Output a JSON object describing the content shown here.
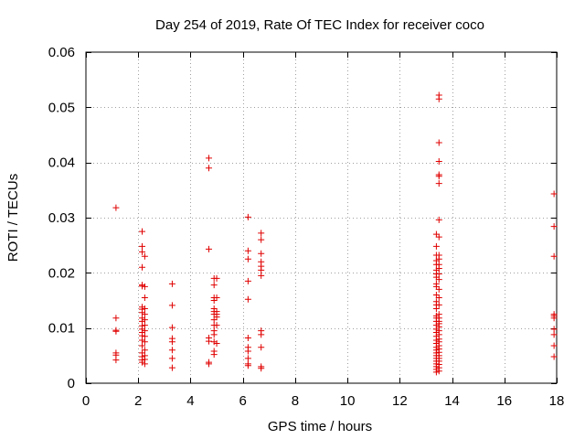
{
  "chart_data": {
    "type": "scatter",
    "title": "Day 254 of 2019, Rate Of TEC Index for receiver coco",
    "xlabel": "GPS time / hours",
    "ylabel": "ROTI / TECUs",
    "xlim": [
      0,
      18
    ],
    "ylim": [
      0,
      0.06
    ],
    "xticks": [
      0,
      2,
      4,
      6,
      8,
      10,
      12,
      14,
      16,
      18
    ],
    "xtick_labels": [
      "0",
      "2",
      "4",
      "6",
      "8",
      "10",
      "12",
      "14",
      "16",
      "18"
    ],
    "yticks": [
      0,
      0.01,
      0.02,
      0.03,
      0.04,
      0.05,
      0.06
    ],
    "ytick_labels": [
      "0",
      "0.01",
      "0.02",
      "0.03",
      "0.04",
      "0.05",
      "0.06"
    ],
    "grid": true,
    "marker": "+",
    "color": "#e00000",
    "series": [
      {
        "name": "ROTI",
        "points": [
          [
            1.15,
            0.0318
          ],
          [
            1.15,
            0.0118
          ],
          [
            1.15,
            0.0096
          ],
          [
            1.15,
            0.0094
          ],
          [
            1.15,
            0.0055
          ],
          [
            1.15,
            0.0051
          ],
          [
            1.15,
            0.0042
          ],
          [
            2.15,
            0.0275
          ],
          [
            2.15,
            0.0248
          ],
          [
            2.15,
            0.0238
          ],
          [
            2.15,
            0.021
          ],
          [
            2.15,
            0.0178
          ],
          [
            2.15,
            0.0176
          ],
          [
            2.15,
            0.0138
          ],
          [
            2.15,
            0.0134
          ],
          [
            2.15,
            0.0128
          ],
          [
            2.15,
            0.0118
          ],
          [
            2.15,
            0.0112
          ],
          [
            2.15,
            0.0104
          ],
          [
            2.15,
            0.0098
          ],
          [
            2.15,
            0.0092
          ],
          [
            2.15,
            0.0086
          ],
          [
            2.15,
            0.0078
          ],
          [
            2.15,
            0.0068
          ],
          [
            2.15,
            0.0055
          ],
          [
            2.15,
            0.0048
          ],
          [
            2.15,
            0.0042
          ],
          [
            2.15,
            0.0038
          ],
          [
            2.25,
            0.023
          ],
          [
            2.25,
            0.0175
          ],
          [
            2.25,
            0.0155
          ],
          [
            2.25,
            0.0135
          ],
          [
            2.25,
            0.0125
          ],
          [
            2.25,
            0.0115
          ],
          [
            2.25,
            0.0105
          ],
          [
            2.25,
            0.0095
          ],
          [
            2.25,
            0.0085
          ],
          [
            2.25,
            0.0075
          ],
          [
            2.25,
            0.006
          ],
          [
            2.25,
            0.005
          ],
          [
            2.25,
            0.0043
          ],
          [
            2.25,
            0.0035
          ],
          [
            3.3,
            0.018
          ],
          [
            3.3,
            0.0141
          ],
          [
            3.3,
            0.0101
          ],
          [
            3.3,
            0.0081
          ],
          [
            3.3,
            0.0075
          ],
          [
            3.3,
            0.006
          ],
          [
            3.3,
            0.0045
          ],
          [
            3.3,
            0.0028
          ],
          [
            4.7,
            0.0408
          ],
          [
            4.7,
            0.039
          ],
          [
            4.7,
            0.0243
          ],
          [
            4.7,
            0.0082
          ],
          [
            4.7,
            0.0076
          ],
          [
            4.7,
            0.0038
          ],
          [
            4.7,
            0.0035
          ],
          [
            4.9,
            0.019
          ],
          [
            4.9,
            0.0178
          ],
          [
            4.9,
            0.0155
          ],
          [
            4.9,
            0.015
          ],
          [
            4.9,
            0.0135
          ],
          [
            4.9,
            0.013
          ],
          [
            4.9,
            0.0125
          ],
          [
            4.9,
            0.0115
          ],
          [
            4.9,
            0.0105
          ],
          [
            4.9,
            0.0095
          ],
          [
            4.9,
            0.0088
          ],
          [
            4.9,
            0.0075
          ],
          [
            4.9,
            0.0058
          ],
          [
            4.9,
            0.0052
          ],
          [
            5.0,
            0.019
          ],
          [
            5.0,
            0.0155
          ],
          [
            5.0,
            0.013
          ],
          [
            5.0,
            0.0125
          ],
          [
            5.0,
            0.012
          ],
          [
            5.0,
            0.0105
          ],
          [
            5.0,
            0.0072
          ],
          [
            6.2,
            0.0301
          ],
          [
            6.2,
            0.024
          ],
          [
            6.2,
            0.0225
          ],
          [
            6.2,
            0.0185
          ],
          [
            6.2,
            0.0152
          ],
          [
            6.2,
            0.0082
          ],
          [
            6.2,
            0.0065
          ],
          [
            6.2,
            0.0058
          ],
          [
            6.2,
            0.0045
          ],
          [
            6.2,
            0.0035
          ],
          [
            6.2,
            0.0032
          ],
          [
            6.7,
            0.0272
          ],
          [
            6.7,
            0.026
          ],
          [
            6.7,
            0.0235
          ],
          [
            6.7,
            0.022
          ],
          [
            6.7,
            0.0212
          ],
          [
            6.7,
            0.0205
          ],
          [
            6.7,
            0.0195
          ],
          [
            6.7,
            0.0095
          ],
          [
            6.7,
            0.0088
          ],
          [
            6.7,
            0.0065
          ],
          [
            6.7,
            0.003
          ],
          [
            6.7,
            0.0027
          ],
          [
            13.4,
            0.027
          ],
          [
            13.4,
            0.0248
          ],
          [
            13.4,
            0.0232
          ],
          [
            13.4,
            0.0222
          ],
          [
            13.4,
            0.0215
          ],
          [
            13.4,
            0.0205
          ],
          [
            13.4,
            0.0198
          ],
          [
            13.4,
            0.0192
          ],
          [
            13.4,
            0.018
          ],
          [
            13.4,
            0.0175
          ],
          [
            13.4,
            0.016
          ],
          [
            13.4,
            0.0148
          ],
          [
            13.4,
            0.0142
          ],
          [
            13.4,
            0.0135
          ],
          [
            13.4,
            0.0122
          ],
          [
            13.4,
            0.0118
          ],
          [
            13.4,
            0.0112
          ],
          [
            13.4,
            0.0105
          ],
          [
            13.4,
            0.0098
          ],
          [
            13.4,
            0.0092
          ],
          [
            13.4,
            0.0085
          ],
          [
            13.4,
            0.0078
          ],
          [
            13.4,
            0.0072
          ],
          [
            13.4,
            0.0065
          ],
          [
            13.4,
            0.006
          ],
          [
            13.4,
            0.0055
          ],
          [
            13.4,
            0.005
          ],
          [
            13.4,
            0.0045
          ],
          [
            13.4,
            0.004
          ],
          [
            13.4,
            0.0035
          ],
          [
            13.4,
            0.003
          ],
          [
            13.4,
            0.0025
          ],
          [
            13.4,
            0.002
          ],
          [
            13.5,
            0.0522
          ],
          [
            13.5,
            0.0515
          ],
          [
            13.5,
            0.0436
          ],
          [
            13.5,
            0.0402
          ],
          [
            13.5,
            0.0378
          ],
          [
            13.5,
            0.0375
          ],
          [
            13.5,
            0.0362
          ],
          [
            13.5,
            0.0296
          ],
          [
            13.5,
            0.0265
          ],
          [
            13.5,
            0.0232
          ],
          [
            13.5,
            0.0225
          ],
          [
            13.5,
            0.0215
          ],
          [
            13.5,
            0.0208
          ],
          [
            13.5,
            0.0198
          ],
          [
            13.5,
            0.0188
          ],
          [
            13.5,
            0.017
          ],
          [
            13.5,
            0.0155
          ],
          [
            13.5,
            0.0142
          ],
          [
            13.5,
            0.0125
          ],
          [
            13.5,
            0.0118
          ],
          [
            13.5,
            0.0112
          ],
          [
            13.5,
            0.0108
          ],
          [
            13.5,
            0.0102
          ],
          [
            13.5,
            0.0095
          ],
          [
            13.5,
            0.0088
          ],
          [
            13.5,
            0.008
          ],
          [
            13.5,
            0.0075
          ],
          [
            13.5,
            0.0068
          ],
          [
            13.5,
            0.0062
          ],
          [
            13.5,
            0.0056
          ],
          [
            13.5,
            0.005
          ],
          [
            13.5,
            0.0045
          ],
          [
            13.5,
            0.004
          ],
          [
            13.5,
            0.0034
          ],
          [
            13.5,
            0.0028
          ],
          [
            13.5,
            0.0022
          ],
          [
            17.9,
            0.0343
          ],
          [
            17.9,
            0.0284
          ],
          [
            17.9,
            0.023
          ],
          [
            17.9,
            0.0125
          ],
          [
            17.9,
            0.0122
          ],
          [
            17.9,
            0.0118
          ],
          [
            17.9,
            0.0098
          ],
          [
            17.9,
            0.0088
          ],
          [
            17.9,
            0.0068
          ],
          [
            17.9,
            0.0048
          ]
        ]
      }
    ]
  }
}
